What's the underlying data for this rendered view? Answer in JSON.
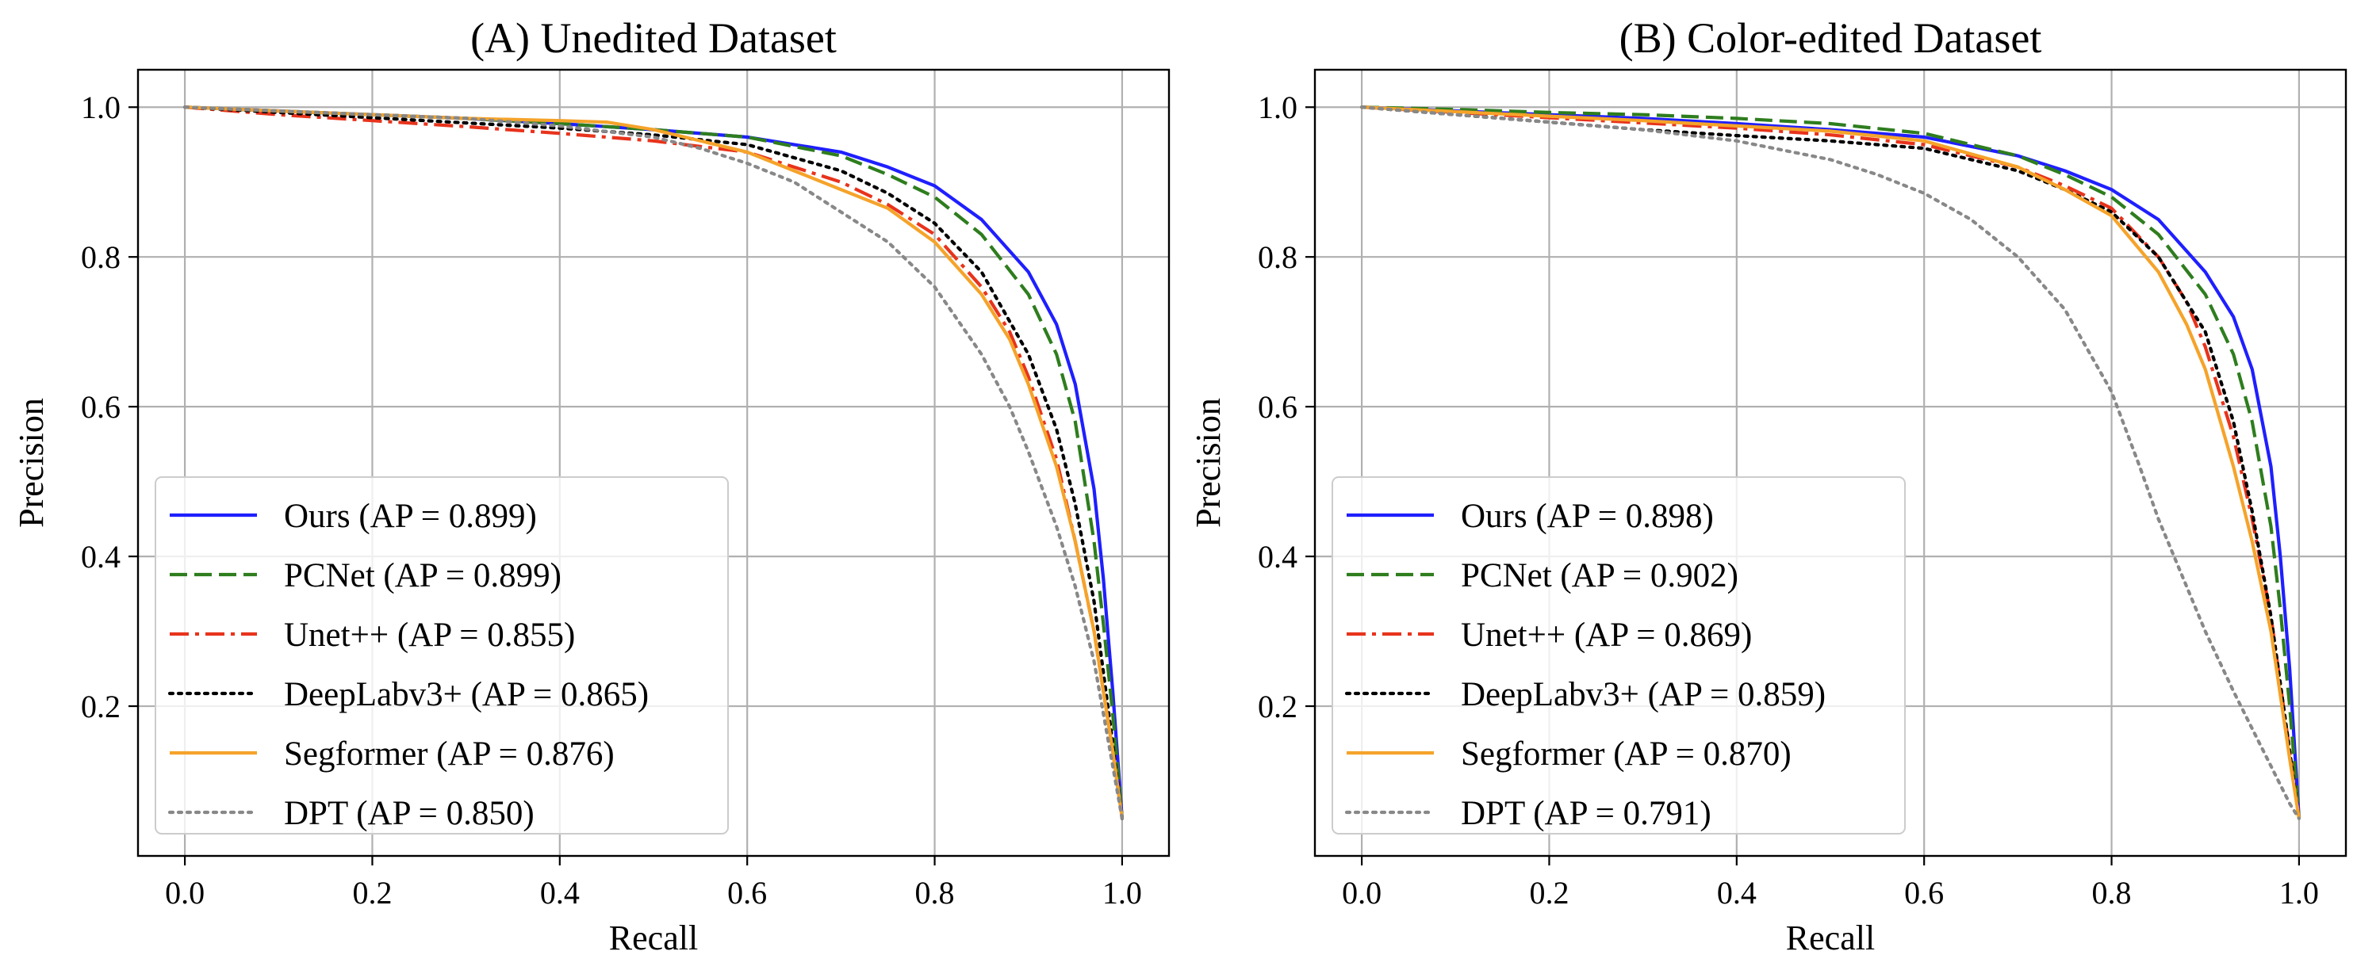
{
  "chart_data": [
    {
      "type": "line",
      "title": "(A) Unedited Dataset",
      "xlabel": "Recall",
      "ylabel": "Precision",
      "xlim": [
        -0.05,
        1.05
      ],
      "ylim": [
        0.0,
        1.05
      ],
      "xticks": [
        "0.0",
        "0.2",
        "0.4",
        "0.6",
        "0.8",
        "1.0"
      ],
      "yticks": [
        "0.2",
        "0.4",
        "0.6",
        "0.8",
        "1.0"
      ],
      "grid": true,
      "legend_position": "lower-left",
      "series": [
        {
          "name": "Ours (AP = 0.899)",
          "color": "#1f1fff",
          "dash": "solid",
          "x": [
            0,
            0.1,
            0.2,
            0.3,
            0.4,
            0.5,
            0.6,
            0.7,
            0.75,
            0.8,
            0.85,
            0.9,
            0.93,
            0.95,
            0.97,
            0.98,
            0.99,
            1.0
          ],
          "y": [
            1.0,
            0.995,
            0.99,
            0.985,
            0.978,
            0.97,
            0.96,
            0.94,
            0.92,
            0.895,
            0.85,
            0.78,
            0.71,
            0.63,
            0.49,
            0.37,
            0.22,
            0.05
          ]
        },
        {
          "name": "PCNet (AP = 0.899)",
          "color": "#2e7d1e",
          "dash": "dashed",
          "x": [
            0,
            0.1,
            0.2,
            0.3,
            0.4,
            0.5,
            0.6,
            0.7,
            0.75,
            0.8,
            0.85,
            0.9,
            0.93,
            0.95,
            0.97,
            0.98,
            0.99,
            1.0
          ],
          "y": [
            1.0,
            0.995,
            0.99,
            0.985,
            0.978,
            0.97,
            0.96,
            0.935,
            0.91,
            0.88,
            0.83,
            0.75,
            0.67,
            0.58,
            0.42,
            0.31,
            0.19,
            0.05
          ]
        },
        {
          "name": "Unet++ (AP = 0.855)",
          "color": "#e8331c",
          "dash": "dashdot",
          "x": [
            0,
            0.1,
            0.2,
            0.3,
            0.4,
            0.5,
            0.6,
            0.7,
            0.75,
            0.8,
            0.85,
            0.88,
            0.9,
            0.93,
            0.95,
            0.97,
            0.99,
            1.0
          ],
          "y": [
            1.0,
            0.99,
            0.982,
            0.974,
            0.965,
            0.955,
            0.94,
            0.9,
            0.87,
            0.83,
            0.76,
            0.7,
            0.64,
            0.53,
            0.42,
            0.3,
            0.14,
            0.05
          ]
        },
        {
          "name": "DeepLabv3+ (AP = 0.865)",
          "color": "#000000",
          "dash": "dotted",
          "x": [
            0,
            0.1,
            0.2,
            0.3,
            0.4,
            0.5,
            0.6,
            0.7,
            0.75,
            0.8,
            0.85,
            0.9,
            0.93,
            0.95,
            0.97,
            0.99,
            1.0
          ],
          "y": [
            1.0,
            0.993,
            0.986,
            0.979,
            0.972,
            0.963,
            0.95,
            0.915,
            0.885,
            0.845,
            0.78,
            0.67,
            0.57,
            0.47,
            0.34,
            0.15,
            0.05
          ]
        },
        {
          "name": "Segformer (AP = 0.876)",
          "color": "#f5a32a",
          "dash": "solid",
          "x": [
            0,
            0.1,
            0.2,
            0.3,
            0.4,
            0.45,
            0.5,
            0.6,
            0.65,
            0.7,
            0.75,
            0.8,
            0.85,
            0.88,
            0.9,
            0.93,
            0.95,
            0.97,
            0.99,
            1.0
          ],
          "y": [
            1.0,
            0.995,
            0.99,
            0.985,
            0.982,
            0.98,
            0.97,
            0.94,
            0.915,
            0.89,
            0.865,
            0.82,
            0.75,
            0.69,
            0.63,
            0.52,
            0.42,
            0.3,
            0.14,
            0.05
          ]
        },
        {
          "name": "DPT (AP = 0.850)",
          "color": "#888888",
          "dash": "dotted",
          "x": [
            0,
            0.1,
            0.2,
            0.3,
            0.4,
            0.5,
            0.55,
            0.6,
            0.65,
            0.7,
            0.75,
            0.8,
            0.85,
            0.88,
            0.9,
            0.93,
            0.95,
            0.97,
            0.99,
            1.0
          ],
          "y": [
            1.0,
            0.995,
            0.99,
            0.985,
            0.975,
            0.96,
            0.945,
            0.925,
            0.9,
            0.86,
            0.82,
            0.76,
            0.67,
            0.6,
            0.54,
            0.44,
            0.36,
            0.26,
            0.12,
            0.05
          ]
        }
      ]
    },
    {
      "type": "line",
      "title": "(B) Color-edited Dataset",
      "xlabel": "Recall",
      "ylabel": "Precision",
      "xlim": [
        -0.05,
        1.05
      ],
      "ylim": [
        0.0,
        1.05
      ],
      "xticks": [
        "0.0",
        "0.2",
        "0.4",
        "0.6",
        "0.8",
        "1.0"
      ],
      "yticks": [
        "0.2",
        "0.4",
        "0.6",
        "0.8",
        "1.0"
      ],
      "grid": true,
      "legend_position": "lower-left",
      "series": [
        {
          "name": "Ours (AP = 0.898)",
          "color": "#1f1fff",
          "dash": "solid",
          "x": [
            0,
            0.1,
            0.2,
            0.3,
            0.4,
            0.5,
            0.6,
            0.7,
            0.75,
            0.8,
            0.85,
            0.9,
            0.93,
            0.95,
            0.97,
            0.98,
            0.99,
            1.0
          ],
          "y": [
            1.0,
            0.995,
            0.99,
            0.985,
            0.978,
            0.97,
            0.96,
            0.935,
            0.915,
            0.89,
            0.85,
            0.78,
            0.72,
            0.65,
            0.52,
            0.4,
            0.25,
            0.05
          ]
        },
        {
          "name": "PCNet (AP = 0.902)",
          "color": "#2e7d1e",
          "dash": "dashed",
          "x": [
            0,
            0.1,
            0.2,
            0.3,
            0.4,
            0.5,
            0.6,
            0.7,
            0.75,
            0.8,
            0.85,
            0.9,
            0.93,
            0.95,
            0.97,
            0.98,
            0.99,
            1.0
          ],
          "y": [
            1.0,
            0.997,
            0.993,
            0.99,
            0.985,
            0.978,
            0.965,
            0.935,
            0.91,
            0.88,
            0.83,
            0.75,
            0.67,
            0.58,
            0.44,
            0.33,
            0.2,
            0.05
          ]
        },
        {
          "name": "Unet++ (AP = 0.869)",
          "color": "#e8331c",
          "dash": "dashdot",
          "x": [
            0,
            0.1,
            0.2,
            0.3,
            0.4,
            0.5,
            0.6,
            0.7,
            0.75,
            0.8,
            0.85,
            0.88,
            0.9,
            0.93,
            0.95,
            0.97,
            0.99,
            1.0
          ],
          "y": [
            1.0,
            0.993,
            0.986,
            0.979,
            0.972,
            0.963,
            0.95,
            0.92,
            0.895,
            0.865,
            0.8,
            0.74,
            0.68,
            0.56,
            0.45,
            0.32,
            0.14,
            0.05
          ]
        },
        {
          "name": "DeepLabv3+ (AP = 0.859)",
          "color": "#000000",
          "dash": "dotted",
          "x": [
            0,
            0.1,
            0.2,
            0.3,
            0.4,
            0.5,
            0.6,
            0.7,
            0.75,
            0.8,
            0.85,
            0.9,
            0.93,
            0.95,
            0.97,
            0.99,
            1.0
          ],
          "y": [
            1.0,
            0.99,
            0.98,
            0.97,
            0.962,
            0.955,
            0.945,
            0.915,
            0.89,
            0.86,
            0.8,
            0.7,
            0.58,
            0.46,
            0.32,
            0.14,
            0.05
          ]
        },
        {
          "name": "Segformer (AP = 0.870)",
          "color": "#f5a32a",
          "dash": "solid",
          "x": [
            0,
            0.1,
            0.2,
            0.3,
            0.4,
            0.5,
            0.6,
            0.7,
            0.75,
            0.8,
            0.85,
            0.88,
            0.9,
            0.93,
            0.95,
            0.97,
            0.99,
            1.0
          ],
          "y": [
            1.0,
            0.994,
            0.988,
            0.982,
            0.975,
            0.968,
            0.955,
            0.92,
            0.89,
            0.855,
            0.78,
            0.71,
            0.65,
            0.52,
            0.42,
            0.3,
            0.13,
            0.05
          ]
        },
        {
          "name": "DPT (AP = 0.791)",
          "color": "#888888",
          "dash": "dotted",
          "x": [
            0,
            0.1,
            0.2,
            0.3,
            0.4,
            0.5,
            0.55,
            0.6,
            0.65,
            0.7,
            0.75,
            0.8,
            0.83,
            0.85,
            0.88,
            0.9,
            0.93,
            0.95,
            0.97,
            0.99,
            1.0
          ],
          "y": [
            1.0,
            0.99,
            0.98,
            0.97,
            0.955,
            0.93,
            0.91,
            0.885,
            0.85,
            0.8,
            0.73,
            0.62,
            0.52,
            0.45,
            0.36,
            0.3,
            0.22,
            0.17,
            0.12,
            0.07,
            0.05
          ]
        }
      ]
    }
  ]
}
